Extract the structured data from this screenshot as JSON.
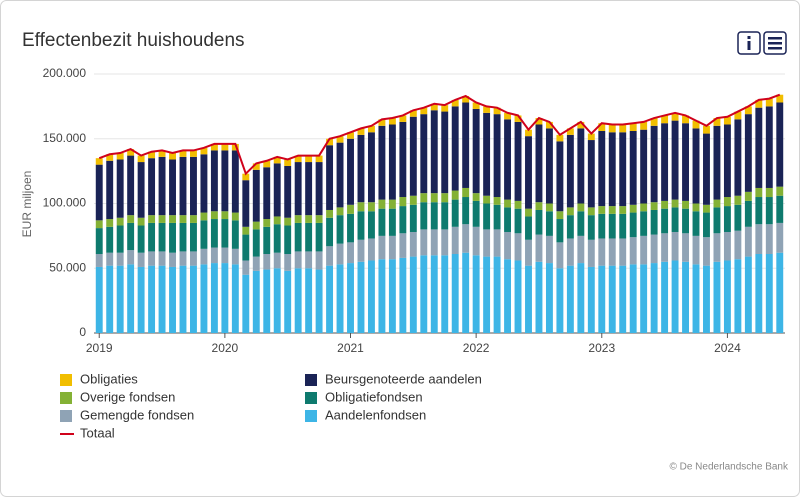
{
  "chart_data": {
    "type": "bar",
    "stacked": true,
    "title": "Effectenbezit huishoudens",
    "y_label": "EUR miljoen",
    "credit": "© De Nederlandsche Bank",
    "categories": [
      "2019",
      null,
      null,
      null,
      null,
      null,
      null,
      null,
      null,
      null,
      null,
      null,
      "2020",
      null,
      null,
      null,
      null,
      null,
      null,
      null,
      null,
      null,
      null,
      null,
      "2021",
      null,
      null,
      null,
      null,
      null,
      null,
      null,
      null,
      null,
      null,
      null,
      "2022",
      null,
      null,
      null,
      null,
      null,
      null,
      null,
      null,
      null,
      null,
      null,
      "2023",
      null,
      null,
      null,
      null,
      null,
      null,
      null,
      null,
      null,
      null,
      null,
      "2024",
      null,
      null,
      null,
      null,
      null
    ],
    "ylim": [
      0,
      200000
    ],
    "yticks": [
      0,
      {
        "value": 50000,
        "label": "50.000"
      },
      {
        "value": 100000,
        "label": "100.000"
      },
      {
        "value": 150000,
        "label": "150.000"
      },
      {
        "value": 200000,
        "label": "200.000"
      }
    ],
    "grid": true,
    "series": [
      {
        "name": "Aandelenfondsen",
        "color": "#3db5e6",
        "values": [
          51000,
          52000,
          52000,
          53000,
          51000,
          52000,
          52000,
          51000,
          52000,
          52000,
          53000,
          54000,
          54000,
          53000,
          45000,
          48000,
          49000,
          50000,
          48000,
          50000,
          50000,
          49000,
          52000,
          53000,
          54000,
          55000,
          56000,
          57000,
          57000,
          58000,
          59000,
          60000,
          60000,
          60000,
          61000,
          62000,
          60000,
          59000,
          59000,
          57000,
          56000,
          52000,
          55000,
          54000,
          50000,
          52000,
          54000,
          51000,
          52000,
          52000,
          52000,
          53000,
          53000,
          54000,
          55000,
          56000,
          55000,
          53000,
          52000,
          55000,
          56000,
          57000,
          59000,
          61000,
          61000,
          62000
        ]
      },
      {
        "name": "Gemengde fondsen",
        "color": "#8fa3b5",
        "values": [
          10000,
          10000,
          10000,
          11000,
          11000,
          11000,
          11000,
          11000,
          11000,
          11000,
          12000,
          12000,
          12000,
          12000,
          11000,
          11000,
          12000,
          12000,
          13000,
          13000,
          13000,
          14000,
          15000,
          16000,
          16000,
          17000,
          17000,
          18000,
          18000,
          19000,
          19000,
          20000,
          20000,
          20000,
          21000,
          22000,
          22000,
          21000,
          21000,
          21000,
          21000,
          20000,
          21000,
          21000,
          20000,
          21000,
          21000,
          21000,
          21000,
          21000,
          21000,
          21000,
          22000,
          22000,
          22000,
          22000,
          22000,
          22000,
          22000,
          22000,
          22000,
          22000,
          23000,
          23000,
          23000,
          23000
        ]
      },
      {
        "name": "Obligatiefondsen",
        "color": "#0e7a6e",
        "values": [
          20000,
          20000,
          21000,
          21000,
          21000,
          22000,
          22000,
          23000,
          22000,
          22000,
          22000,
          22000,
          22000,
          22000,
          20000,
          21000,
          21000,
          22000,
          22000,
          22000,
          22000,
          22000,
          22000,
          22000,
          22000,
          22000,
          21000,
          21000,
          21000,
          21000,
          21000,
          21000,
          21000,
          21000,
          21000,
          21000,
          20000,
          20000,
          19000,
          19000,
          19000,
          18000,
          19000,
          19000,
          18000,
          18000,
          19000,
          19000,
          19000,
          19000,
          19000,
          19000,
          19000,
          19000,
          19000,
          19000,
          19000,
          19000,
          19000,
          20000,
          20000,
          20000,
          20000,
          21000,
          21000,
          21000
        ]
      },
      {
        "name": "Overige fondsen",
        "color": "#84b135",
        "values": [
          6000,
          6000,
          6000,
          6000,
          6000,
          6000,
          6000,
          6000,
          6000,
          6000,
          6000,
          6000,
          6000,
          6000,
          6000,
          6000,
          6000,
          6000,
          6000,
          6000,
          6000,
          6000,
          6000,
          6000,
          7000,
          7000,
          7000,
          7000,
          7000,
          7000,
          7000,
          7000,
          7000,
          7000,
          7000,
          7000,
          6000,
          6000,
          6000,
          6000,
          6000,
          6000,
          6000,
          6000,
          6000,
          6000,
          6000,
          6000,
          6000,
          6000,
          6000,
          6000,
          6000,
          6000,
          6000,
          6000,
          6000,
          6000,
          6000,
          6000,
          7000,
          7000,
          7000,
          7000,
          7000,
          7000
        ]
      },
      {
        "name": "Beursgenoteerde aandelen",
        "color": "#1a2356",
        "values": [
          43000,
          45000,
          45000,
          46000,
          43000,
          44000,
          45000,
          43000,
          45000,
          45000,
          45000,
          47000,
          47000,
          48000,
          36000,
          40000,
          40000,
          41000,
          40000,
          41000,
          41000,
          41000,
          50000,
          50000,
          51000,
          52000,
          54000,
          57000,
          58000,
          58000,
          61000,
          61000,
          64000,
          63000,
          65000,
          66000,
          65000,
          64000,
          64000,
          62000,
          61000,
          56000,
          60000,
          58000,
          54000,
          56000,
          58000,
          52000,
          58000,
          57000,
          57000,
          57000,
          57000,
          59000,
          60000,
          61000,
          60000,
          58000,
          55000,
          57000,
          56000,
          59000,
          60000,
          62000,
          63000,
          65000
        ]
      },
      {
        "name": "Obligaties",
        "color": "#f1be00",
        "values": [
          5000,
          5000,
          5000,
          5000,
          5000,
          5000,
          5000,
          5000,
          5000,
          5000,
          5000,
          5000,
          5000,
          5000,
          5000,
          5000,
          5000,
          5000,
          5000,
          5000,
          5000,
          5000,
          5000,
          5000,
          5000,
          5000,
          5000,
          5000,
          5000,
          5000,
          5000,
          5000,
          5000,
          5000,
          5000,
          5000,
          5000,
          5000,
          5000,
          5000,
          5000,
          5000,
          5000,
          5000,
          5000,
          5000,
          5000,
          5000,
          6000,
          6000,
          6000,
          6000,
          6000,
          6000,
          6000,
          6000,
          6000,
          6000,
          6000,
          6000,
          6000,
          6000,
          6000,
          6000,
          6000,
          6000
        ]
      },
      {
        "name": "Totaal",
        "type": "line",
        "color": "#d0021b",
        "values": [
          135000,
          138000,
          139000,
          142000,
          137000,
          140000,
          141000,
          139000,
          141000,
          141000,
          143000,
          146000,
          146000,
          146000,
          123000,
          131000,
          133000,
          136000,
          134000,
          137000,
          137000,
          137000,
          150000,
          152000,
          155000,
          158000,
          160000,
          165000,
          166000,
          168000,
          172000,
          174000,
          177000,
          176000,
          180000,
          183000,
          178000,
          175000,
          174000,
          170000,
          168000,
          157000,
          166000,
          163000,
          153000,
          158000,
          163000,
          154000,
          162000,
          161000,
          161000,
          162000,
          163000,
          166000,
          168000,
          170000,
          168000,
          164000,
          160000,
          166000,
          167000,
          171000,
          175000,
          180000,
          181000,
          184000
        ]
      }
    ]
  }
}
